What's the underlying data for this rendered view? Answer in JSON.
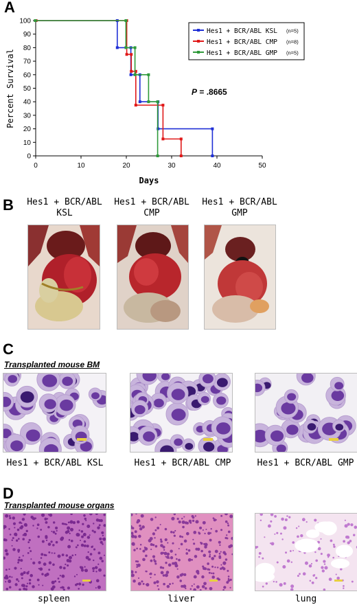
{
  "panels": {
    "a": "A",
    "b": "B",
    "c": "C",
    "d": "D"
  },
  "chart_data": {
    "type": "line",
    "step": true,
    "xlabel": "Days",
    "ylabel": "Percent Survival",
    "xlim": [
      0,
      50
    ],
    "ylim": [
      0,
      100
    ],
    "xticks": [
      "0",
      "10",
      "20",
      "30",
      "40",
      "50"
    ],
    "yticks": [
      "0",
      "10",
      "20",
      "30",
      "40",
      "50",
      "60",
      "70",
      "80",
      "90",
      "100"
    ],
    "annotation": "P = .8665",
    "annotation_p": "P",
    "annotation_val": " = .8665",
    "legend_position": "top-right",
    "series": [
      {
        "name": "Hes1 + BCR/ABL KSL",
        "n": "(n=5)",
        "color": "#1f2fd6",
        "x": [
          0,
          18,
          21,
          23,
          27,
          39
        ],
        "y": [
          100,
          80,
          60,
          40,
          20,
          0
        ]
      },
      {
        "name": "Hes1 + BCR/ABL CMP",
        "n": "(n=8)",
        "color": "#e01818",
        "x": [
          0,
          20,
          21,
          22,
          28,
          32
        ],
        "y": [
          100,
          75,
          62.5,
          37.5,
          12.5,
          0
        ]
      },
      {
        "name": "Hes1 + BCR/ABL GMP",
        "n": "(n=5)",
        "color": "#2f9a3a",
        "x": [
          0,
          20,
          22,
          25,
          27
        ],
        "y": [
          100,
          80,
          60,
          40,
          0
        ]
      }
    ]
  },
  "panel_b": {
    "captions": [
      {
        "line1": "Hes1 + BCR/ABL",
        "line2": "KSL"
      },
      {
        "line1": "Hes1 + BCR/ABL",
        "line2": "CMP"
      },
      {
        "line1": "Hes1 + BCR/ABL",
        "line2": "GMP"
      }
    ]
  },
  "panel_c": {
    "subtitle": "Transplanted mouse BM",
    "captions": [
      "Hes1 + BCR/ABL KSL",
      "Hes1 + BCR/ABL CMP",
      "Hes1 + BCR/ABL GMP"
    ]
  },
  "panel_d": {
    "subtitle": "Transplanted mouse organs",
    "captions": [
      "spleen",
      "liver",
      "lung"
    ]
  }
}
